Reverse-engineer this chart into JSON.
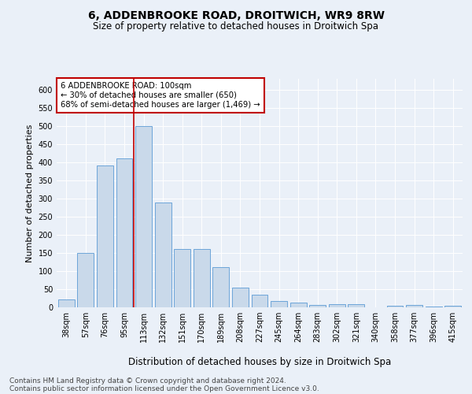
{
  "title": "6, ADDENBROOKE ROAD, DROITWICH, WR9 8RW",
  "subtitle": "Size of property relative to detached houses in Droitwich Spa",
  "xlabel": "Distribution of detached houses by size in Droitwich Spa",
  "ylabel": "Number of detached properties",
  "categories": [
    "38sqm",
    "57sqm",
    "76sqm",
    "95sqm",
    "113sqm",
    "132sqm",
    "151sqm",
    "170sqm",
    "189sqm",
    "208sqm",
    "227sqm",
    "245sqm",
    "264sqm",
    "283sqm",
    "302sqm",
    "321sqm",
    "340sqm",
    "358sqm",
    "377sqm",
    "396sqm",
    "415sqm"
  ],
  "values": [
    22,
    150,
    390,
    410,
    500,
    290,
    160,
    160,
    110,
    55,
    35,
    18,
    12,
    7,
    8,
    9,
    0,
    4,
    6,
    3,
    5
  ],
  "bar_color": "#c9d9ea",
  "bar_edge_color": "#5b9bd5",
  "vline_x": 3.5,
  "vline_color": "#c00000",
  "annotation_text": "6 ADDENBROOKE ROAD: 100sqm\n← 30% of detached houses are smaller (650)\n68% of semi-detached houses are larger (1,469) →",
  "annotation_box_color": "#c00000",
  "ylim": [
    0,
    630
  ],
  "yticks": [
    0,
    50,
    100,
    150,
    200,
    250,
    300,
    350,
    400,
    450,
    500,
    550,
    600
  ],
  "footer1": "Contains HM Land Registry data © Crown copyright and database right 2024.",
  "footer2": "Contains public sector information licensed under the Open Government Licence v3.0.",
  "bg_color": "#eaf0f8",
  "plot_bg_color": "#eaf0f8",
  "title_fontsize": 10,
  "subtitle_fontsize": 8.5,
  "axis_label_fontsize": 8,
  "tick_fontsize": 7,
  "footer_fontsize": 6.5
}
